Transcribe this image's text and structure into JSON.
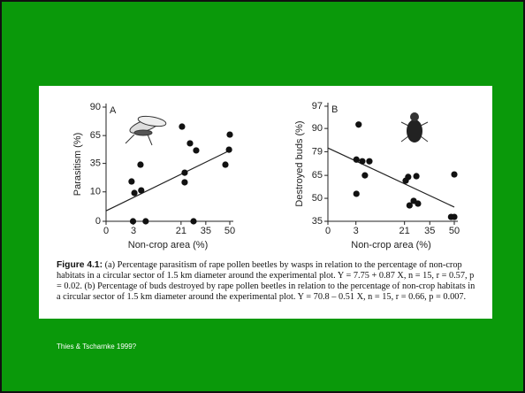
{
  "chart_data": [
    {
      "type": "scatter",
      "panel": "A",
      "xlabel": "Non-crop area (%)",
      "ylabel": "Parasitism (%)",
      "xscale": "arcsine-sqrt",
      "yscale": "arcsine-sqrt",
      "color": "#111",
      "xlim": [
        0,
        50
      ],
      "ylim": [
        0,
        90
      ],
      "xticks": [
        0,
        3,
        21,
        35,
        50
      ],
      "yticks": [
        0,
        10,
        35,
        65,
        90
      ],
      "x": [
        2.6,
        3.2,
        4.7,
        4.9,
        2.9,
        6.2,
        21.5,
        22.9,
        22.9,
        25.8,
        27.8,
        29.3,
        47.2,
        49.5,
        50
      ],
      "values": [
        17.8,
        9.3,
        33.7,
        11,
        0,
        0,
        74,
        25.7,
        17.1,
        56.7,
        0,
        49,
        33.7,
        49.8,
        66
      ],
      "trendline": {
        "x": [
          0,
          50
        ],
        "values": [
          1.3,
          49
        ]
      }
    },
    {
      "type": "scatter",
      "panel": "B",
      "xlabel": "Non-crop area (%)",
      "ylabel": "Destroyed buds (%)",
      "xscale": "arcsine-sqrt",
      "yscale": "arcsine-sqrt",
      "color": "#111",
      "xlim": [
        0,
        50
      ],
      "ylim": [
        35,
        97
      ],
      "xticks": [
        0,
        3,
        21,
        35,
        50
      ],
      "yticks": [
        35,
        50,
        65,
        79,
        90,
        97
      ],
      "x": [
        3.1,
        3.6,
        3.1,
        5.2,
        4.5,
        6.5,
        21.6,
        22.9,
        23.6,
        25.8,
        27.3,
        28.2,
        48,
        50,
        50
      ],
      "values": [
        53,
        91.5,
        74.6,
        65,
        73.6,
        73.6,
        61.6,
        64,
        45.3,
        48.3,
        64.5,
        46.5,
        37.8,
        37.8,
        65.6
      ],
      "trendline": {
        "x": [
          0,
          50
        ],
        "values": [
          81,
          44.2
        ]
      }
    }
  ],
  "caption": {
    "label": "Figure 4.1:",
    "text": "(a) Percentage parasitism of rape pollen beetles by wasps in relation to the percentage of non-crop habitats in a circular sector of 1.5 km diameter around the experimental plot. Y = 7.75 + 0.87 X, n = 15, r = 0.57, p = 0.02. (b) Percentage of buds destroyed by rape pollen beetles in relation to the percentage of non-crop habitats in a circular sector of 1.5 km diameter around the experimental plot. Y = 70.8 – 0.51 X, n = 15, r = 0.66, p = 0.007."
  },
  "citation": "Thies & Tscharnke 1999?"
}
